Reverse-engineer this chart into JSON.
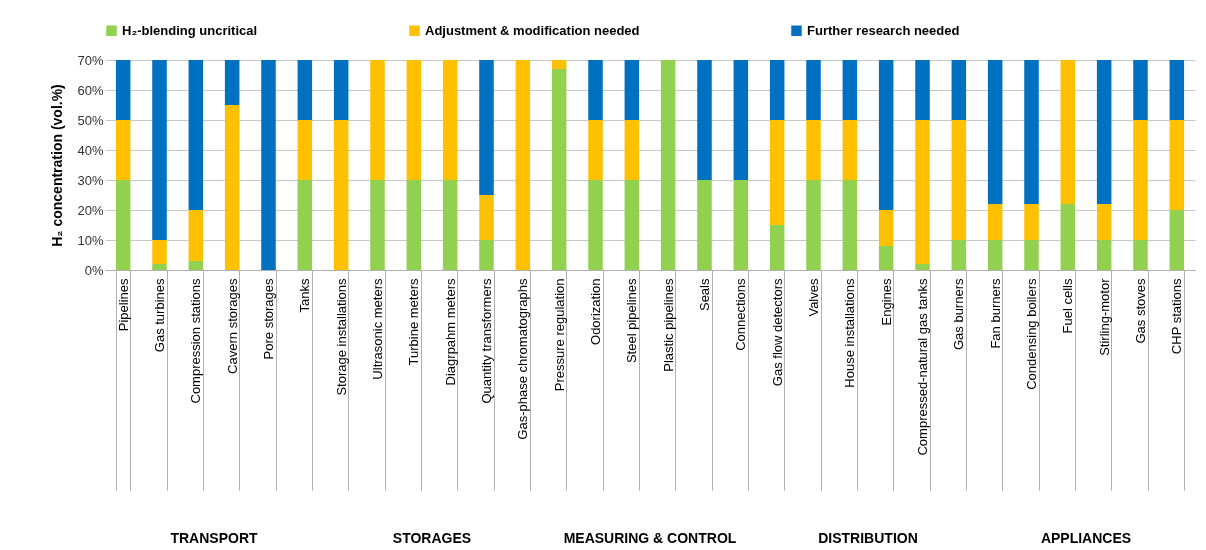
{
  "chart_data": {
    "type": "bar",
    "stacked": true,
    "ylabel": "H₂ concentration (vol.%)",
    "categories": [
      "Pipelines",
      "Gas turbines",
      "Compression stations",
      "Cavern storages",
      "Pore storages",
      "Tanks",
      "Storage installations",
      "Ultrasonic meters",
      "Turbine meters",
      "Diagrpahm meters",
      "Quantity transformers",
      "Gas-phase chromatographs",
      "Pressure regulation",
      "Odorization",
      "Steel pipelines",
      "Plastic pipelines",
      "Seals",
      "Connections",
      "Gas flow detectors",
      "Valves",
      "House installations",
      "Engines",
      "Compressed-natural gas tanks",
      "Gas burners",
      "Fan burners",
      "Condensing boilers",
      "Fuel cells",
      "Stirling-motor",
      "Gas stoves",
      "CHP stations"
    ],
    "series": [
      {
        "name": "H₂-blending uncritical",
        "color": "#92d050",
        "values": [
          30,
          2,
          3,
          0,
          0,
          30,
          0,
          30,
          30,
          30,
          10,
          0,
          67,
          30,
          30,
          70,
          30,
          30,
          15,
          30,
          30,
          8,
          2,
          10,
          10,
          10,
          22,
          10,
          10,
          20
        ]
      },
      {
        "name": "Adjustment & modification needed",
        "color": "#ffc000",
        "values": [
          20,
          8,
          17,
          55,
          0,
          20,
          50,
          40,
          40,
          40,
          15,
          70,
          3,
          20,
          20,
          0,
          0,
          0,
          35,
          20,
          20,
          12,
          48,
          40,
          12,
          12,
          48,
          12,
          40,
          30
        ]
      },
      {
        "name": "Further research needed",
        "color": "#0070c0",
        "values": [
          20,
          60,
          50,
          15,
          70,
          20,
          20,
          0,
          0,
          0,
          45,
          0,
          0,
          20,
          20,
          0,
          40,
          40,
          20,
          20,
          20,
          50,
          20,
          20,
          48,
          48,
          0,
          48,
          20,
          20
        ]
      }
    ],
    "ylim": [
      0,
      70
    ],
    "yticks": [
      {
        "value": 0,
        "label": "0%"
      },
      {
        "value": 10,
        "label": "10%"
      },
      {
        "value": 20,
        "label": "20%"
      },
      {
        "value": 30,
        "label": "30%"
      },
      {
        "value": 40,
        "label": "40%"
      },
      {
        "value": 50,
        "label": "50%"
      },
      {
        "value": 60,
        "label": "60%"
      },
      {
        "value": 70,
        "label": "70%"
      }
    ],
    "grid": "y",
    "legend": "top",
    "annotations": [
      "TRANSPORT",
      "STORAGES",
      "MEASURING & CONTROL",
      "DISTRIBUTION",
      "APPLIANCES"
    ]
  }
}
